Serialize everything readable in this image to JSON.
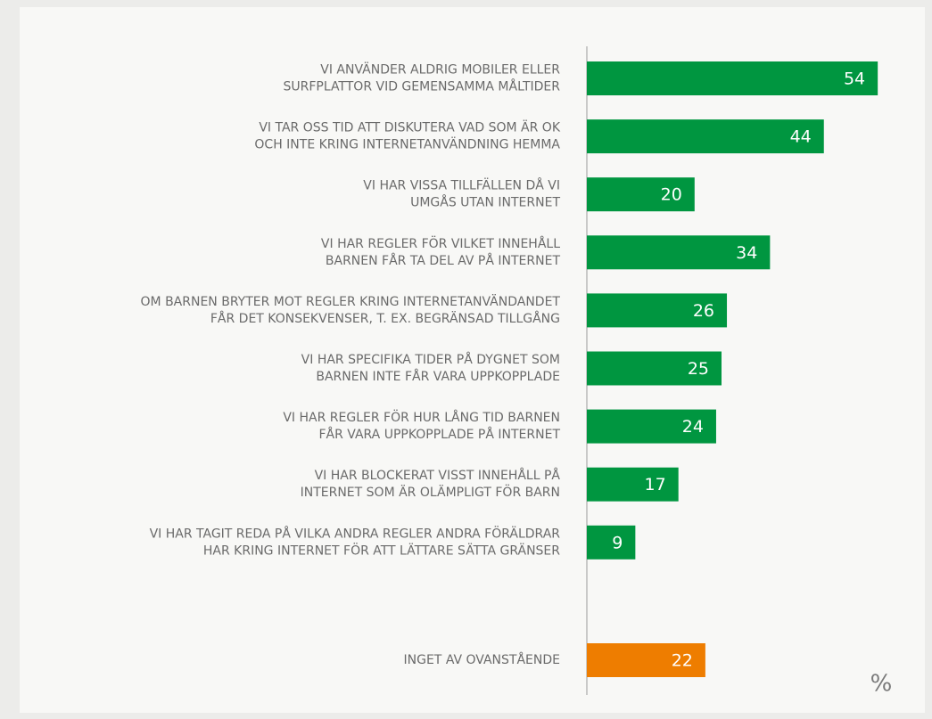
{
  "chart_data": {
    "type": "barh",
    "categories": [
      [
        "VI ANVÄNDER ALDRIG MOBILER ELLER",
        "SURFPLATTOR VID GEMENSAMMA MÅLTIDER"
      ],
      [
        "VI TAR OSS TID ATT DISKUTERA VAD SOM ÄR OK",
        "OCH INTE KRING INTERNETANVÄNDNING HEMMA"
      ],
      [
        "VI HAR VISSA TILLFÄLLEN DÅ VI",
        "UMGÅS UTAN INTERNET"
      ],
      [
        "VI HAR REGLER FÖR VILKET INNEHÅLL",
        "BARNEN FÅR TA DEL AV PÅ INTERNET"
      ],
      [
        "OM BARNEN BRYTER MOT REGLER KRING INTERNETANVÄNDANDET",
        "FÅR DET KONSEKVENSER, T. EX. BEGRÄNSAD TILLGÅNG"
      ],
      [
        "VI HAR SPECIFIKA TIDER PÅ DYGNET SOM",
        "BARNEN INTE FÅR VARA UPPKOPPLADE"
      ],
      [
        "VI HAR REGLER FÖR HUR LÅNG TID BARNEN",
        "FÅR VARA UPPKOPPLADE PÅ INTERNET"
      ],
      [
        "VI HAR BLOCKERAT VISST INNEHÅLL PÅ",
        "INTERNET SOM ÄR OLÄMPLIGT FÖR BARN"
      ],
      [
        "VI HAR TAGIT REDA PÅ VILKA ANDRA REGLER ANDRA FÖRÄLDRAR",
        "HAR KRING INTERNET FÖR ATT LÄTTARE SÄTTA GRÄNSER"
      ],
      [
        "INGET AV OVANSTÅENDE"
      ]
    ],
    "values": [
      54,
      44,
      20,
      34,
      26,
      25,
      24,
      17,
      9,
      22
    ],
    "colors": [
      "#009640",
      "#009640",
      "#009640",
      "#009640",
      "#009640",
      "#009640",
      "#009640",
      "#009640",
      "#009640",
      "#ee7d00"
    ],
    "unit_label": "%"
  }
}
